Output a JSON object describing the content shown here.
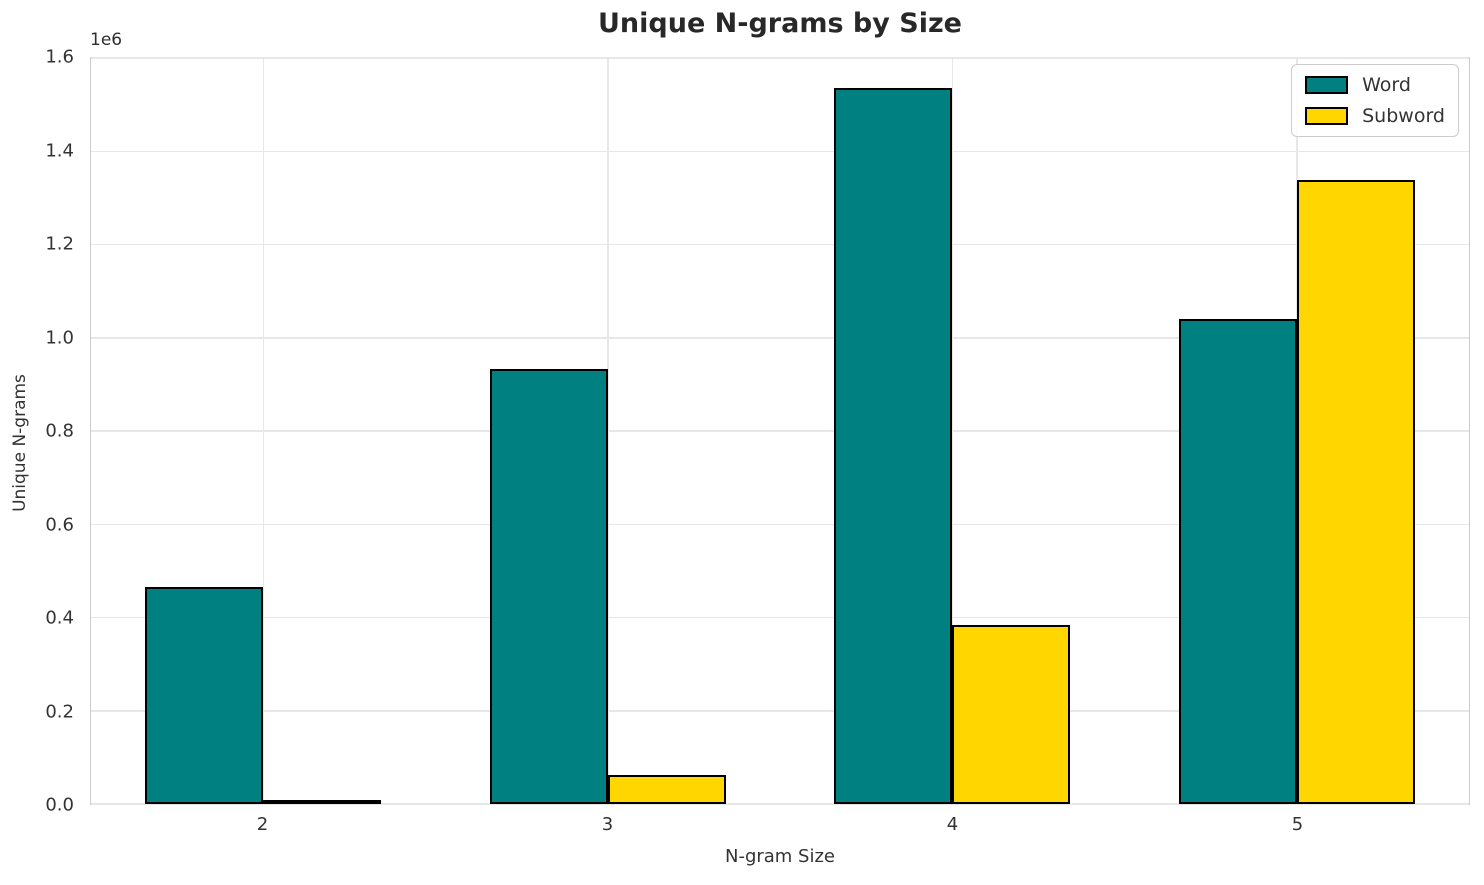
{
  "title": "Unique N-grams by Size",
  "chart_data": {
    "type": "bar",
    "title": "Unique N-grams by Size",
    "xlabel": "N-gram Size",
    "ylabel": "Unique N-grams",
    "y_offset_text": "1e6",
    "categories": [
      "2",
      "3",
      "4",
      "5"
    ],
    "series": [
      {
        "name": "Word",
        "color": "#008080",
        "values": [
          465000,
          932000,
          1536000,
          1041000
        ]
      },
      {
        "name": "Subword",
        "color": "#FFD600",
        "values": [
          8000,
          62000,
          385000,
          1339000
        ]
      }
    ],
    "ylim": [
      0,
      1600000
    ],
    "yticks": {
      "values": [
        0,
        200000,
        400000,
        600000,
        800000,
        1000000,
        1200000,
        1400000,
        1600000
      ],
      "labels": [
        "0.0",
        "0.2",
        "0.4",
        "0.6",
        "0.8",
        "1.0",
        "1.2",
        "1.4",
        "1.6"
      ]
    },
    "grid": true,
    "legend_position": "upper right",
    "bar_edge_color": "#000000",
    "background": "#ffffff",
    "grid_color": "#e7e7e7"
  }
}
